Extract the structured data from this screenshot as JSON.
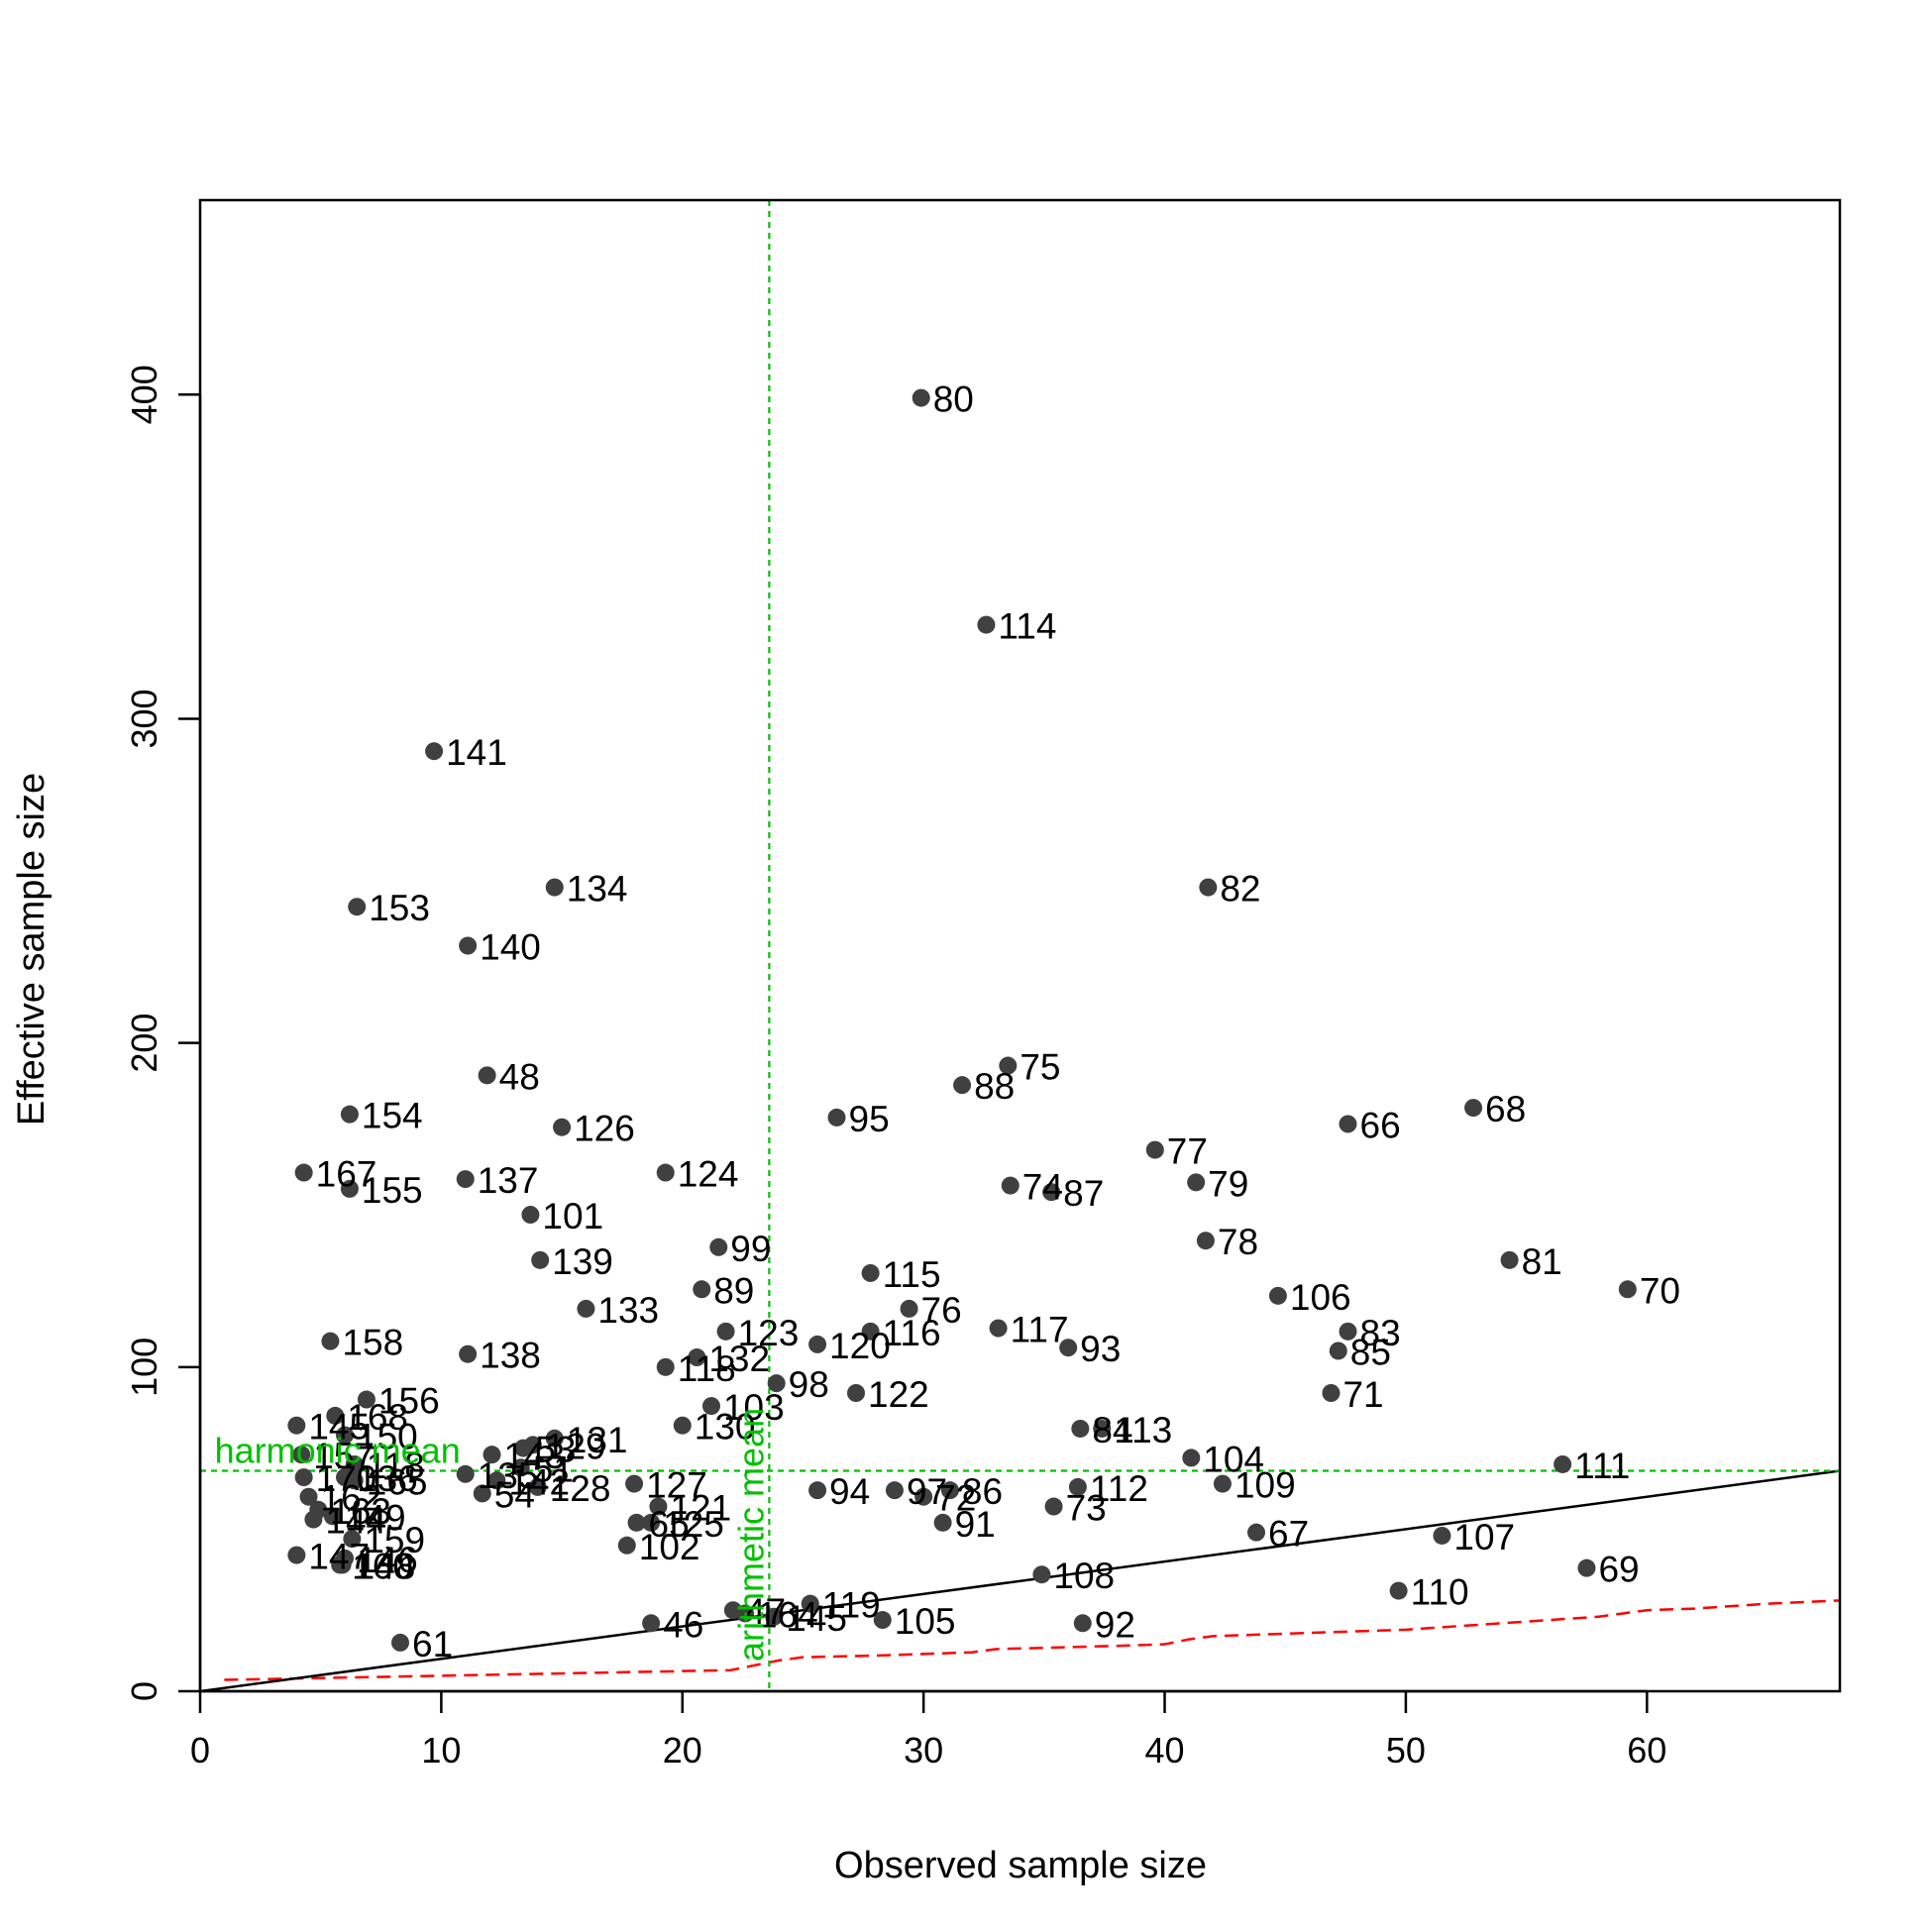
{
  "chart_data": {
    "type": "scatter",
    "title": "",
    "xlabel": "Observed sample size",
    "ylabel": "Effective sample size",
    "xlim": [
      0,
      68
    ],
    "ylim": [
      0,
      460
    ],
    "x_ticks": [
      0,
      10,
      20,
      30,
      40,
      50,
      60
    ],
    "y_ticks": [
      0,
      100,
      200,
      300,
      400
    ],
    "grid": false,
    "legend": "none",
    "colors": {
      "points": "#404040",
      "identity_line": "#000000",
      "reference_lines": "#00c000",
      "lower_bound": "#ff0000"
    },
    "reference_lines": {
      "harmonic_mean": {
        "label": "harmonic mean",
        "y": 68
      },
      "arithmetic_mean": {
        "label": "arithmetic mean",
        "x": 23.6
      }
    },
    "identity_line": {
      "from": [
        0,
        0
      ],
      "to": [
        68,
        68
      ]
    },
    "lower_bound": {
      "x": [
        1,
        22,
        23,
        24,
        25,
        28,
        30,
        32,
        33,
        38,
        40,
        41,
        42,
        50,
        52,
        54,
        56,
        58,
        59,
        60,
        62,
        64,
        65,
        68
      ],
      "y": [
        3.5,
        6.5,
        8,
        9.5,
        10.5,
        11,
        11.5,
        12,
        13,
        14,
        14.5,
        16,
        17,
        19,
        20,
        21,
        22,
        23,
        24,
        25,
        25.5,
        26.5,
        27,
        28
      ]
    },
    "points": [
      {
        "label": "80",
        "x": 29.9,
        "y": 399
      },
      {
        "label": "114",
        "x": 32.6,
        "y": 329
      },
      {
        "label": "141",
        "x": 9.7,
        "y": 290
      },
      {
        "label": "153",
        "x": 6.5,
        "y": 242
      },
      {
        "label": "134",
        "x": 14.7,
        "y": 248
      },
      {
        "label": "82",
        "x": 41.8,
        "y": 248
      },
      {
        "label": "140",
        "x": 11.1,
        "y": 230
      },
      {
        "label": "75",
        "x": 33.5,
        "y": 193
      },
      {
        "label": "48",
        "x": 11.9,
        "y": 190
      },
      {
        "label": "88",
        "x": 31.6,
        "y": 187
      },
      {
        "label": "68",
        "x": 52.8,
        "y": 180
      },
      {
        "label": "154",
        "x": 6.2,
        "y": 178
      },
      {
        "label": "95",
        "x": 26.4,
        "y": 177
      },
      {
        "label": "66",
        "x": 47.6,
        "y": 175
      },
      {
        "label": "126",
        "x": 15.0,
        "y": 174
      },
      {
        "label": "77",
        "x": 39.6,
        "y": 167
      },
      {
        "label": "167",
        "x": 4.3,
        "y": 160
      },
      {
        "label": "124",
        "x": 19.3,
        "y": 160
      },
      {
        "label": "137",
        "x": 11.0,
        "y": 158
      },
      {
        "label": "79",
        "x": 41.3,
        "y": 157
      },
      {
        "label": "74",
        "x": 33.6,
        "y": 156
      },
      {
        "label": "155",
        "x": 6.2,
        "y": 155
      },
      {
        "label": "87",
        "x": 35.3,
        "y": 154
      },
      {
        "label": "101",
        "x": 13.7,
        "y": 147
      },
      {
        "label": "78",
        "x": 41.7,
        "y": 139
      },
      {
        "label": "99",
        "x": 21.5,
        "y": 137
      },
      {
        "label": "139",
        "x": 14.1,
        "y": 133
      },
      {
        "label": "81",
        "x": 54.3,
        "y": 133
      },
      {
        "label": "115",
        "x": 27.8,
        "y": 129
      },
      {
        "label": "70",
        "x": 59.2,
        "y": 124
      },
      {
        "label": "89",
        "x": 20.8,
        "y": 124
      },
      {
        "label": "106",
        "x": 44.7,
        "y": 122
      },
      {
        "label": "133",
        "x": 16.0,
        "y": 118
      },
      {
        "label": "76",
        "x": 29.4,
        "y": 118
      },
      {
        "label": "117",
        "x": 33.1,
        "y": 112
      },
      {
        "label": "83",
        "x": 47.6,
        "y": 111
      },
      {
        "label": "116",
        "x": 27.8,
        "y": 111
      },
      {
        "label": "123",
        "x": 21.8,
        "y": 111
      },
      {
        "label": "158",
        "x": 5.4,
        "y": 108
      },
      {
        "label": "120",
        "x": 25.6,
        "y": 107
      },
      {
        "label": "93",
        "x": 36.0,
        "y": 106
      },
      {
        "label": "85",
        "x": 47.2,
        "y": 105
      },
      {
        "label": "138",
        "x": 11.1,
        "y": 104
      },
      {
        "label": "132",
        "x": 20.6,
        "y": 103
      },
      {
        "label": "118",
        "x": 19.3,
        "y": 100
      },
      {
        "label": "98",
        "x": 23.9,
        "y": 95
      },
      {
        "label": "71",
        "x": 46.9,
        "y": 92
      },
      {
        "label": "122",
        "x": 27.2,
        "y": 92
      },
      {
        "label": "156",
        "x": 6.9,
        "y": 90
      },
      {
        "label": "103",
        "x": 21.2,
        "y": 88
      },
      {
        "label": "168",
        "x": 5.6,
        "y": 85
      },
      {
        "label": "145",
        "x": 4.0,
        "y": 82
      },
      {
        "label": "130",
        "x": 20.0,
        "y": 82
      },
      {
        "label": "84",
        "x": 36.5,
        "y": 81
      },
      {
        "label": "113",
        "x": 37.4,
        "y": 81
      },
      {
        "label": "150",
        "x": 6.0,
        "y": 79
      },
      {
        "label": "131",
        "x": 14.7,
        "y": 78
      },
      {
        "label": "129",
        "x": 13.8,
        "y": 76
      },
      {
        "label": "53",
        "x": 13.4,
        "y": 75
      },
      {
        "label": "157",
        "x": 4.2,
        "y": 73
      },
      {
        "label": "143",
        "x": 12.1,
        "y": 73
      },
      {
        "label": "104",
        "x": 41.1,
        "y": 72
      },
      {
        "label": "118",
        "x": 6.4,
        "y": 70
      },
      {
        "label": "111",
        "x": 56.5,
        "y": 70
      },
      {
        "label": "51",
        "x": 13.3,
        "y": 69
      },
      {
        "label": "135",
        "x": 11.0,
        "y": 67
      },
      {
        "label": "170",
        "x": 4.3,
        "y": 66
      },
      {
        "label": "136",
        "x": 6.0,
        "y": 66
      },
      {
        "label": "165",
        "x": 6.4,
        "y": 65
      },
      {
        "label": "142",
        "x": 12.3,
        "y": 65
      },
      {
        "label": "109",
        "x": 42.4,
        "y": 64
      },
      {
        "label": "127",
        "x": 18.0,
        "y": 64
      },
      {
        "label": "128",
        "x": 14.0,
        "y": 63
      },
      {
        "label": "112",
        "x": 36.4,
        "y": 63
      },
      {
        "label": "86",
        "x": 31.1,
        "y": 62
      },
      {
        "label": "94",
        "x": 25.6,
        "y": 62
      },
      {
        "label": "97",
        "x": 28.8,
        "y": 62
      },
      {
        "label": "54",
        "x": 11.7,
        "y": 61
      },
      {
        "label": "162",
        "x": 4.5,
        "y": 60
      },
      {
        "label": "72",
        "x": 30.0,
        "y": 60
      },
      {
        "label": "73",
        "x": 35.4,
        "y": 57
      },
      {
        "label": "121",
        "x": 19.0,
        "y": 57
      },
      {
        "label": "163",
        "x": 4.9,
        "y": 56
      },
      {
        "label": "149",
        "x": 5.5,
        "y": 54
      },
      {
        "label": "144",
        "x": 4.7,
        "y": 53
      },
      {
        "label": "125",
        "x": 18.7,
        "y": 52
      },
      {
        "label": "91",
        "x": 30.8,
        "y": 52
      },
      {
        "label": "65",
        "x": 18.1,
        "y": 52
      },
      {
        "label": "67",
        "x": 43.8,
        "y": 49
      },
      {
        "label": "107",
        "x": 51.5,
        "y": 48
      },
      {
        "label": "159",
        "x": 6.3,
        "y": 47
      },
      {
        "label": "102",
        "x": 17.7,
        "y": 45
      },
      {
        "label": "147",
        "x": 4.0,
        "y": 42
      },
      {
        "label": "146",
        "x": 6.0,
        "y": 41
      },
      {
        "label": "148",
        "x": 5.9,
        "y": 39
      },
      {
        "label": "160",
        "x": 5.8,
        "y": 39
      },
      {
        "label": "69",
        "x": 57.5,
        "y": 38
      },
      {
        "label": "108",
        "x": 34.9,
        "y": 36
      },
      {
        "label": "110",
        "x": 49.7,
        "y": 31
      },
      {
        "label": "119",
        "x": 25.3,
        "y": 27
      },
      {
        "label": "47",
        "x": 22.1,
        "y": 25
      },
      {
        "label": "164",
        "x": 22.6,
        "y": 24
      },
      {
        "label": "145",
        "x": 23.8,
        "y": 23
      },
      {
        "label": "105",
        "x": 28.3,
        "y": 22
      },
      {
        "label": "92",
        "x": 36.6,
        "y": 21
      },
      {
        "label": "46",
        "x": 18.7,
        "y": 21
      },
      {
        "label": "61",
        "x": 8.3,
        "y": 15
      }
    ]
  }
}
